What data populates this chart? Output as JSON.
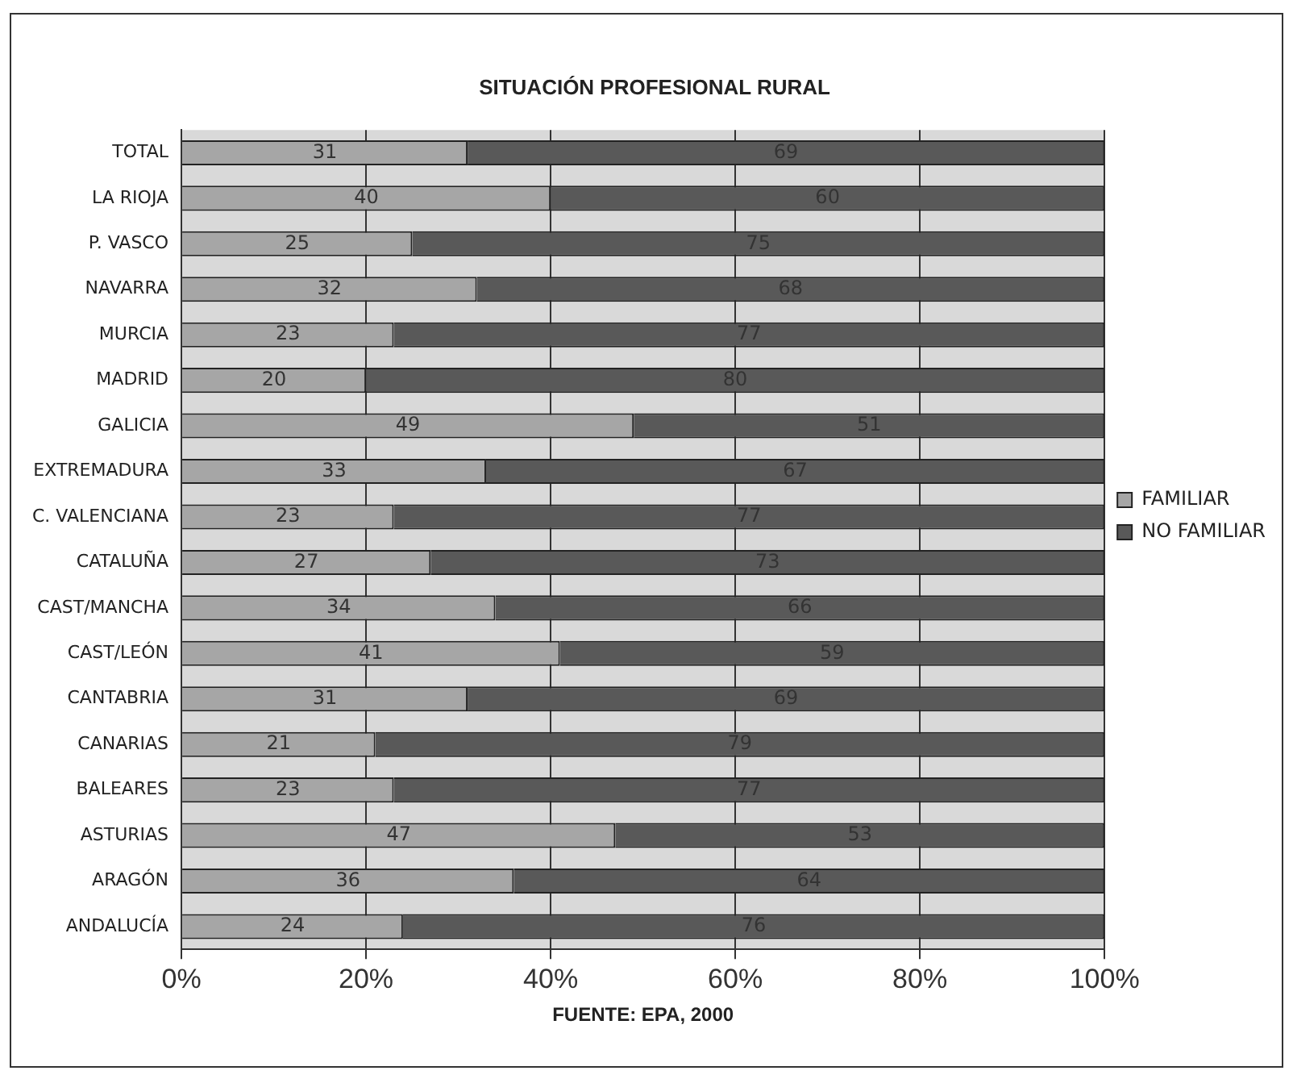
{
  "chart_data": {
    "type": "bar",
    "orientation": "horizontal",
    "stacked": true,
    "title": "SITUACIÓN PROFESIONAL RURAL",
    "categories": [
      "TOTAL",
      "LA RIOJA",
      "P. VASCO",
      "NAVARRA",
      "MURCIA",
      "MADRID",
      "GALICIA",
      "EXTREMADURA",
      "C. VALENCIANA",
      "CATALUÑA",
      "CAST/MANCHA",
      "CAST/LEÓN",
      "CANTABRIA",
      "CANARIAS",
      "BALEARES",
      "ASTURIAS",
      "ARAGÓN",
      "ANDALUCÍA"
    ],
    "series": [
      {
        "name": "FAMILIAR",
        "color": "#a6a6a6",
        "values": [
          31,
          40,
          25,
          32,
          23,
          20,
          49,
          33,
          23,
          27,
          34,
          41,
          31,
          21,
          23,
          47,
          36,
          24
        ]
      },
      {
        "name": "NO FAMILIAR",
        "color": "#595959",
        "values": [
          69,
          60,
          75,
          68,
          77,
          80,
          51,
          67,
          77,
          73,
          66,
          59,
          69,
          79,
          77,
          53,
          64,
          76
        ]
      }
    ],
    "xlim": [
      0,
      100
    ],
    "xticks": [
      {
        "value": 0,
        "label": "0%"
      },
      {
        "value": 20,
        "label": "20%"
      },
      {
        "value": 40,
        "label": "40%"
      },
      {
        "value": 60,
        "label": "60%"
      },
      {
        "value": 80,
        "label": "80%"
      },
      {
        "value": 100,
        "label": "100%"
      }
    ],
    "grid": "x",
    "legend": "right",
    "data_labels": true,
    "annotations": [
      "FUENTE: EPA, 2000"
    ]
  }
}
